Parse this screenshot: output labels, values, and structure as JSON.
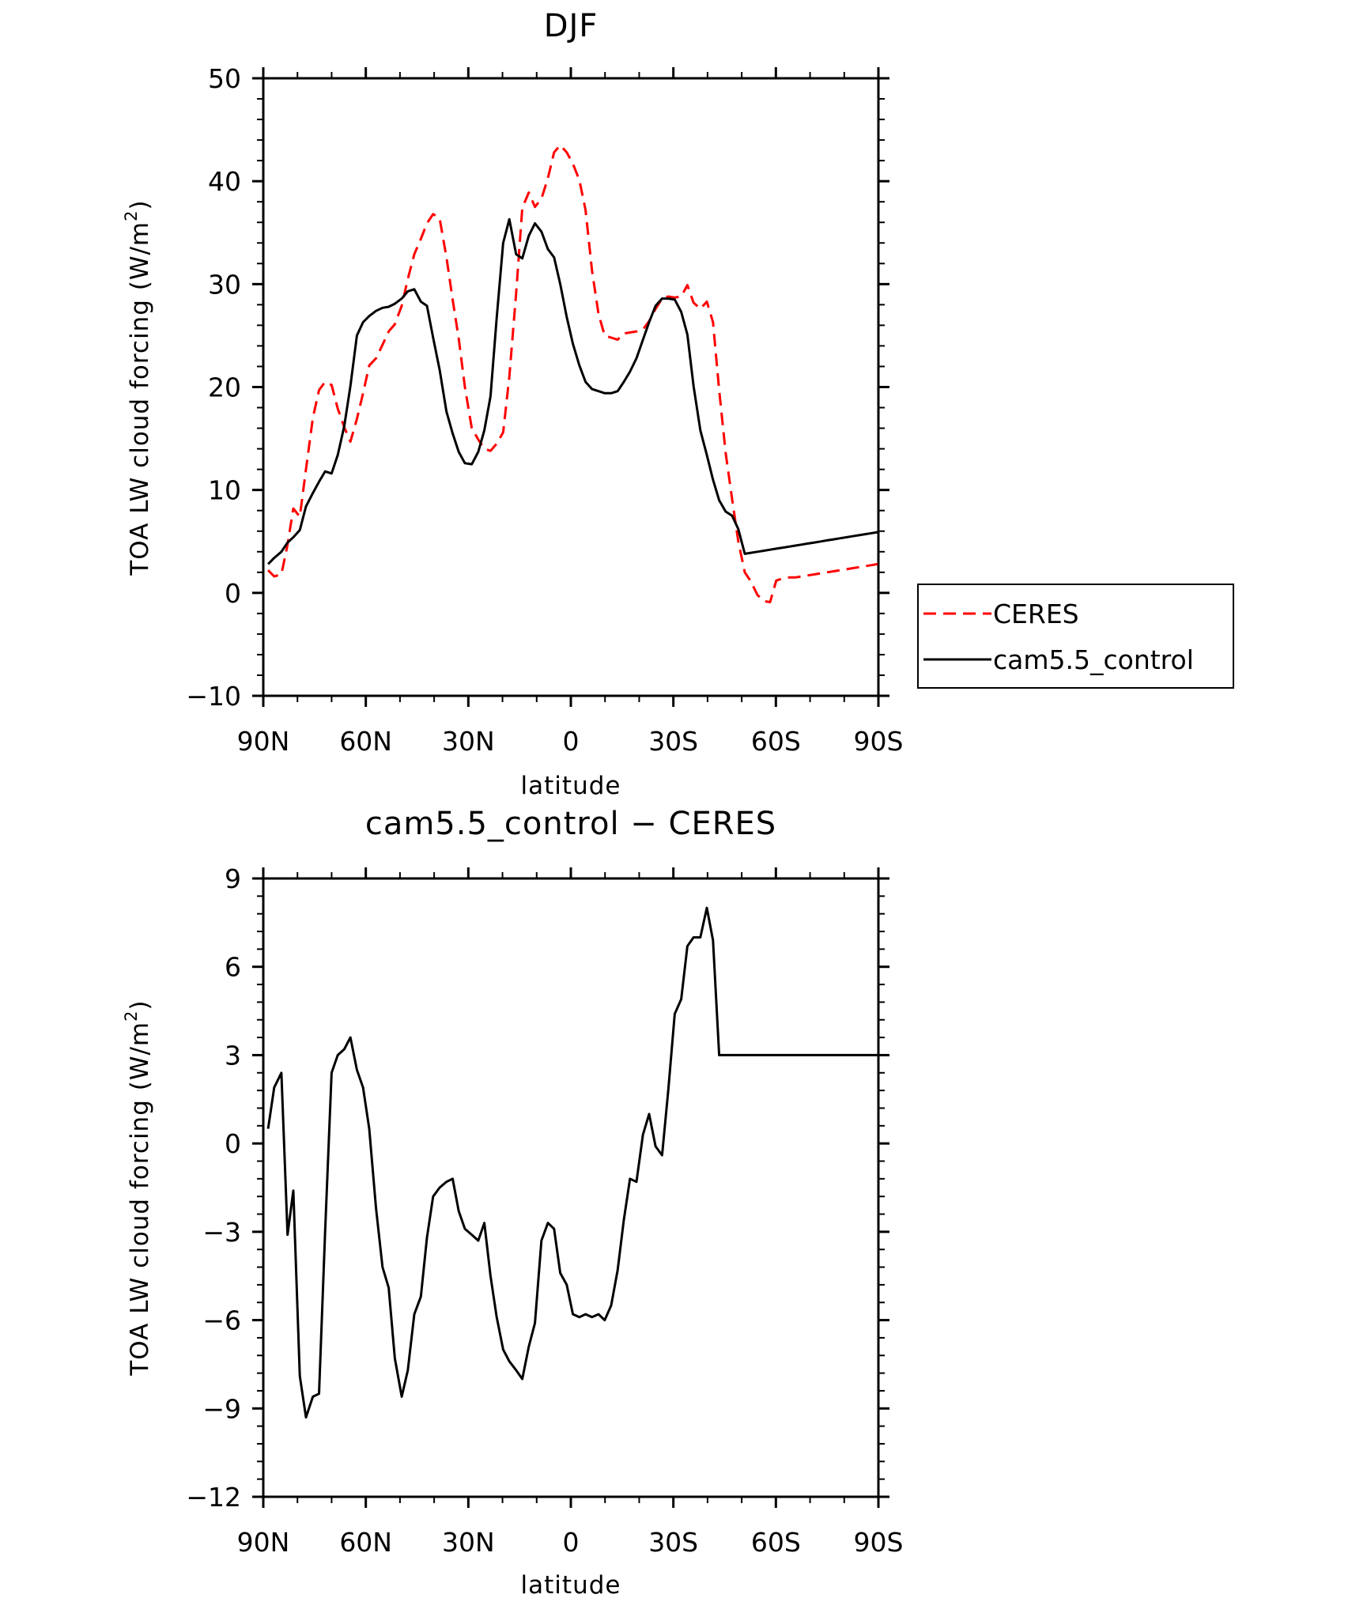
{
  "chart_data": [
    {
      "type": "line",
      "title": "DJF",
      "xlabel": "latitude",
      "ylabel": "TOA LW cloud forcing (W/m",
      "ylabel_sup": "2",
      "ylabel_close": ")",
      "xlim": [
        90,
        -90
      ],
      "ylim": [
        -10,
        50
      ],
      "x_ticks": [
        {
          "v": 90,
          "label": "90N"
        },
        {
          "v": 60,
          "label": "60N"
        },
        {
          "v": 30,
          "label": "30N"
        },
        {
          "v": 0,
          "label": "0"
        },
        {
          "v": -30,
          "label": "30S"
        },
        {
          "v": -60,
          "label": "60S"
        },
        {
          "v": -90,
          "label": "90S"
        }
      ],
      "y_ticks": [
        {
          "v": -10,
          "label": "−10"
        },
        {
          "v": 0,
          "label": "0"
        },
        {
          "v": 10,
          "label": "10"
        },
        {
          "v": 20,
          "label": "20"
        },
        {
          "v": 30,
          "label": "30"
        },
        {
          "v": 40,
          "label": "40"
        },
        {
          "v": 50,
          "label": "50"
        }
      ],
      "legend_position": "right",
      "series": [
        {
          "name": "CERES",
          "color": "#ff0000",
          "dash": "dashed",
          "x": [
            88.6,
            86.8,
            84.7,
            82.9,
            81.2,
            79.3,
            77.5,
            75.5,
            73.7,
            71.9,
            70.0,
            68.2,
            66.3,
            64.5,
            62.6,
            60.8,
            59.0,
            57.0,
            55.1,
            53.3,
            51.5,
            49.5,
            47.7,
            45.8,
            43.9,
            42.1,
            40.3,
            38.4,
            36.4,
            34.6,
            32.8,
            31.0,
            29.0,
            27.1,
            25.3,
            23.5,
            21.7,
            19.8,
            18.0,
            16.0,
            14.2,
            12.3,
            10.5,
            8.6,
            6.7,
            4.9,
            3.1,
            1.2,
            -0.6,
            -2.5,
            -4.3,
            -6.2,
            -8.1,
            -9.9,
            -11.8,
            -13.7,
            -15.5,
            -17.3,
            -19.2,
            -21.1,
            -22.9,
            -24.8,
            -26.7,
            -28.5,
            -30.4,
            -32.3,
            -34.1,
            -35.9,
            -37.9,
            -39.8,
            -41.6,
            -43.4,
            -45.3,
            -47.2,
            -49.0,
            -50.9,
            -52.7,
            -54.6,
            -56.5,
            -58.3,
            -60.1,
            -62.0,
            -63.9,
            -65.7,
            -67.6,
            -69.4,
            -71.3,
            -73.1,
            -75.0,
            -76.9,
            -78.7,
            -80.6,
            -82.4,
            -84.3,
            -86.1,
            -88.0,
            -89.8
          ],
          "y": [
            2.2,
            1.6,
            1.8,
            4.7,
            8.2,
            7.4,
            12.0,
            17.0,
            19.7,
            20.5,
            20.2,
            17.9,
            16.1,
            14.7,
            16.9,
            19.4,
            22.1,
            22.8,
            24.1,
            25.4,
            26.1,
            27.9,
            30.5,
            32.9,
            34.4,
            35.9,
            36.8,
            36.4,
            32.6,
            28.5,
            24.7,
            20.0,
            16.0,
            14.9,
            14.0,
            13.8,
            14.5,
            15.6,
            21.0,
            29.1,
            37.4,
            38.9,
            37.5,
            38.3,
            40.3,
            42.8,
            43.5,
            42.8,
            41.7,
            40.1,
            37.2,
            31.3,
            27.1,
            25.0,
            24.8,
            24.6,
            25.2,
            25.3,
            25.4,
            25.6,
            26.4,
            27.6,
            28.6,
            28.8,
            28.7,
            28.8,
            29.9,
            28.2,
            27.6,
            28.3,
            26.3,
            19.7,
            13.6,
            9.1,
            5.0,
            2.0,
            1.1,
            -0.2,
            -0.8,
            -0.9,
            1.2,
            1.4,
            1.5,
            1.5,
            1.6,
            1.7,
            1.8,
            1.9,
            2.0,
            2.1,
            2.2,
            2.3,
            2.4,
            2.5,
            2.6,
            2.7,
            2.8
          ]
        },
        {
          "name": "cam5.5_control",
          "color": "#000000",
          "dash": "solid",
          "x": [
            88.6,
            86.8,
            84.7,
            82.9,
            81.2,
            79.3,
            77.5,
            75.5,
            73.7,
            71.9,
            70.0,
            68.2,
            66.3,
            64.5,
            62.6,
            60.8,
            59.0,
            57.0,
            55.1,
            53.3,
            51.5,
            49.5,
            47.7,
            45.8,
            43.9,
            42.1,
            40.3,
            38.4,
            36.4,
            34.6,
            32.8,
            31.0,
            29.0,
            27.1,
            25.3,
            23.5,
            21.7,
            19.8,
            18.0,
            16.0,
            14.2,
            12.3,
            10.5,
            8.6,
            6.7,
            4.9,
            3.1,
            1.2,
            -0.6,
            -2.5,
            -4.3,
            -6.2,
            -8.1,
            -9.9,
            -11.8,
            -13.7,
            -15.5,
            -17.3,
            -19.2,
            -21.1,
            -22.9,
            -24.8,
            -26.7,
            -28.5,
            -30.4,
            -32.3,
            -34.1,
            -35.9,
            -37.9,
            -39.8,
            -41.6,
            -43.4,
            -45.3,
            -47.2,
            -49.0,
            -50.9,
            -52.7,
            -54.6,
            -56.5,
            -58.3,
            -60.1,
            -62.0,
            -63.9,
            -65.7,
            -67.6,
            -69.4,
            -71.3,
            -73.1,
            -75.0,
            -76.9,
            -78.7,
            -80.6,
            -82.4,
            -84.3,
            -86.1,
            -88.0,
            -89.8
          ],
          "y": [
            2.8,
            3.4,
            4.0,
            4.9,
            5.4,
            6.1,
            8.4,
            9.7,
            10.8,
            11.8,
            11.6,
            13.4,
            16.2,
            20.1,
            25.0,
            26.3,
            26.9,
            27.4,
            27.7,
            27.8,
            28.1,
            28.6,
            29.3,
            29.5,
            28.3,
            27.9,
            24.8,
            21.7,
            17.6,
            15.5,
            13.7,
            12.6,
            12.5,
            13.7,
            15.8,
            19.1,
            26.7,
            34.0,
            36.3,
            32.9,
            32.5,
            34.7,
            35.9,
            35.1,
            33.4,
            32.6,
            30.0,
            26.8,
            24.2,
            22.1,
            20.5,
            19.8,
            19.6,
            19.4,
            19.4,
            19.6,
            20.5,
            21.5,
            22.8,
            24.6,
            26.3,
            27.9,
            28.6,
            28.6,
            28.5,
            27.3,
            25.1,
            20.1,
            15.8,
            13.4,
            11.0,
            9.0,
            7.9,
            7.5,
            6.2,
            3.8,
            3.9,
            4.0,
            4.1,
            4.2,
            4.3,
            4.4,
            4.5,
            4.6,
            4.7,
            4.8,
            4.9,
            5.0,
            5.1,
            5.2,
            5.3,
            5.4,
            5.5,
            5.6,
            5.7,
            5.8,
            5.9
          ]
        }
      ]
    },
    {
      "type": "line",
      "title": "cam5.5_control − CERES",
      "xlabel": "latitude",
      "ylabel": "TOA LW cloud forcing (W/m",
      "ylabel_sup": "2",
      "ylabel_close": ")",
      "xlim": [
        90,
        -90
      ],
      "ylim": [
        -12,
        9
      ],
      "x_ticks": [
        {
          "v": 90,
          "label": "90N"
        },
        {
          "v": 60,
          "label": "60N"
        },
        {
          "v": 30,
          "label": "30N"
        },
        {
          "v": 0,
          "label": "0"
        },
        {
          "v": -30,
          "label": "30S"
        },
        {
          "v": -60,
          "label": "60S"
        },
        {
          "v": -90,
          "label": "90S"
        }
      ],
      "y_ticks": [
        {
          "v": -12,
          "label": "−12"
        },
        {
          "v": -9,
          "label": "−9"
        },
        {
          "v": -6,
          "label": "−6"
        },
        {
          "v": -3,
          "label": "−3"
        },
        {
          "v": 0,
          "label": "0"
        },
        {
          "v": 3,
          "label": "3"
        },
        {
          "v": 6,
          "label": "6"
        },
        {
          "v": 9,
          "label": "9"
        }
      ],
      "series": [
        {
          "name": "",
          "color": "#000000",
          "dash": "solid",
          "x": [
            88.6,
            86.8,
            84.7,
            82.9,
            81.2,
            79.3,
            77.5,
            75.5,
            73.7,
            71.9,
            70.0,
            68.2,
            66.3,
            64.5,
            62.6,
            60.8,
            59.0,
            57.0,
            55.1,
            53.3,
            51.5,
            49.5,
            47.7,
            45.8,
            43.9,
            42.1,
            40.3,
            38.4,
            36.4,
            34.6,
            32.8,
            31.0,
            29.0,
            27.1,
            25.3,
            23.5,
            21.7,
            19.8,
            18.0,
            16.0,
            14.2,
            12.3,
            10.5,
            8.6,
            6.7,
            4.9,
            3.1,
            1.2,
            -0.6,
            -2.5,
            -4.3,
            -6.2,
            -8.1,
            -9.9,
            -11.8,
            -13.7,
            -15.5,
            -17.3,
            -19.2,
            -21.1,
            -22.9,
            -24.8,
            -26.7,
            -28.5,
            -30.4,
            -32.3,
            -34.1,
            -35.9,
            -37.9,
            -39.8,
            -41.6,
            -43.4,
            -45.3,
            -47.2,
            -49.0,
            -50.9,
            -52.7,
            -54.6,
            -56.5,
            -58.3,
            -60.1,
            -62.0,
            -63.9,
            -65.7,
            -67.6,
            -69.4,
            -71.3,
            -73.1,
            -75.0,
            -76.9,
            -78.7,
            -80.6,
            -82.4,
            -84.3,
            -86.1,
            -88.0,
            -89.8
          ],
          "y": [
            0.5,
            1.9,
            2.4,
            -3.1,
            -1.6,
            -7.9,
            -9.3,
            -8.6,
            -8.5,
            -3.0,
            2.4,
            3.0,
            3.2,
            3.6,
            2.5,
            1.9,
            0.5,
            -2.2,
            -4.2,
            -4.9,
            -7.3,
            -8.6,
            -7.7,
            -5.8,
            -5.2,
            -3.2,
            -1.8,
            -1.5,
            -1.3,
            -1.2,
            -2.3,
            -2.9,
            -3.1,
            -3.3,
            -2.7,
            -4.5,
            -5.9,
            -7.0,
            -7.4,
            -7.7,
            -8.0,
            -6.9,
            -6.1,
            -3.3,
            -2.7,
            -2.9,
            -4.4,
            -4.8,
            -5.8,
            -5.9,
            -5.8,
            -5.9,
            -5.8,
            -6.0,
            -5.5,
            -4.3,
            -2.6,
            -1.2,
            -1.3,
            0.3,
            1.0,
            -0.1,
            -0.4,
            1.8,
            4.4,
            4.9,
            6.7,
            7.0,
            7.0,
            8.0,
            6.9,
            3.0,
            3.0,
            3.0,
            3.0,
            3.0,
            3.0,
            3.0,
            3.0,
            3.0,
            3.0,
            3.0,
            3.0,
            3.0,
            3.0,
            3.0,
            3.0,
            3.0,
            3.0,
            3.0,
            3.0,
            3.0,
            3.0,
            3.0,
            3.0,
            3.0,
            3.0
          ]
        }
      ]
    }
  ]
}
